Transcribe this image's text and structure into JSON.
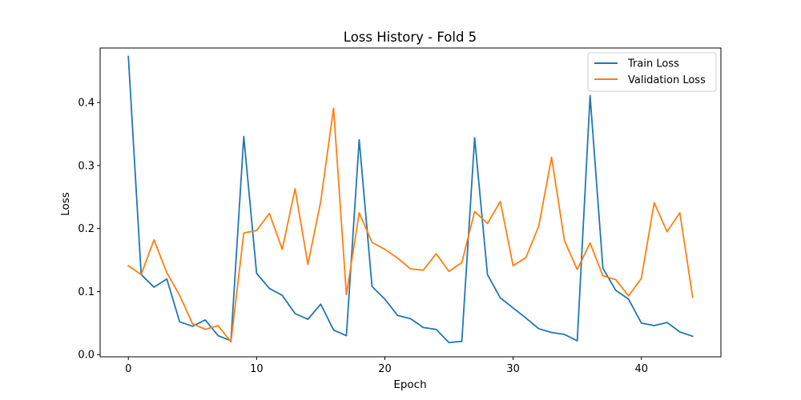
{
  "chart_data": {
    "type": "line",
    "title": "Loss History - Fold 5",
    "xlabel": "Epoch",
    "ylabel": "Loss",
    "xlim": [
      -2.2,
      46.2
    ],
    "ylim": [
      -0.0035,
      0.4865
    ],
    "xticks": [
      0,
      10,
      20,
      30,
      40
    ],
    "yticks": [
      0.0,
      0.1,
      0.2,
      0.3,
      0.4
    ],
    "ytick_labels": [
      "0.0",
      "0.1",
      "0.2",
      "0.3",
      "0.4"
    ],
    "grid": false,
    "legend_position": "top-right",
    "x": [
      0,
      1,
      2,
      3,
      4,
      5,
      6,
      7,
      8,
      9,
      10,
      11,
      12,
      13,
      14,
      15,
      16,
      17,
      18,
      19,
      20,
      21,
      22,
      23,
      24,
      25,
      26,
      27,
      28,
      29,
      30,
      31,
      32,
      33,
      34,
      35,
      36,
      37,
      38,
      39,
      40,
      41,
      42,
      43,
      44
    ],
    "series": [
      {
        "name": "Train Loss",
        "color": "#1f77b4",
        "values": [
          0.473,
          0.127,
          0.107,
          0.12,
          0.052,
          0.045,
          0.055,
          0.03,
          0.022,
          0.346,
          0.129,
          0.105,
          0.094,
          0.065,
          0.056,
          0.08,
          0.039,
          0.03,
          0.341,
          0.108,
          0.088,
          0.062,
          0.057,
          0.043,
          0.04,
          0.019,
          0.021,
          0.344,
          0.127,
          0.09,
          0.074,
          0.058,
          0.041,
          0.035,
          0.032,
          0.022,
          0.411,
          0.137,
          0.102,
          0.088,
          0.05,
          0.046,
          0.051,
          0.036,
          0.029
        ]
      },
      {
        "name": "Validation Loss",
        "color": "#ff7f0e",
        "values": [
          0.141,
          0.127,
          0.182,
          0.13,
          0.094,
          0.049,
          0.04,
          0.046,
          0.02,
          0.193,
          0.197,
          0.224,
          0.167,
          0.263,
          0.143,
          0.243,
          0.391,
          0.095,
          0.225,
          0.178,
          0.167,
          0.153,
          0.136,
          0.134,
          0.16,
          0.132,
          0.146,
          0.227,
          0.208,
          0.243,
          0.141,
          0.154,
          0.204,
          0.313,
          0.181,
          0.135,
          0.177,
          0.125,
          0.119,
          0.093,
          0.121,
          0.241,
          0.195,
          0.225,
          0.091
        ]
      }
    ]
  }
}
